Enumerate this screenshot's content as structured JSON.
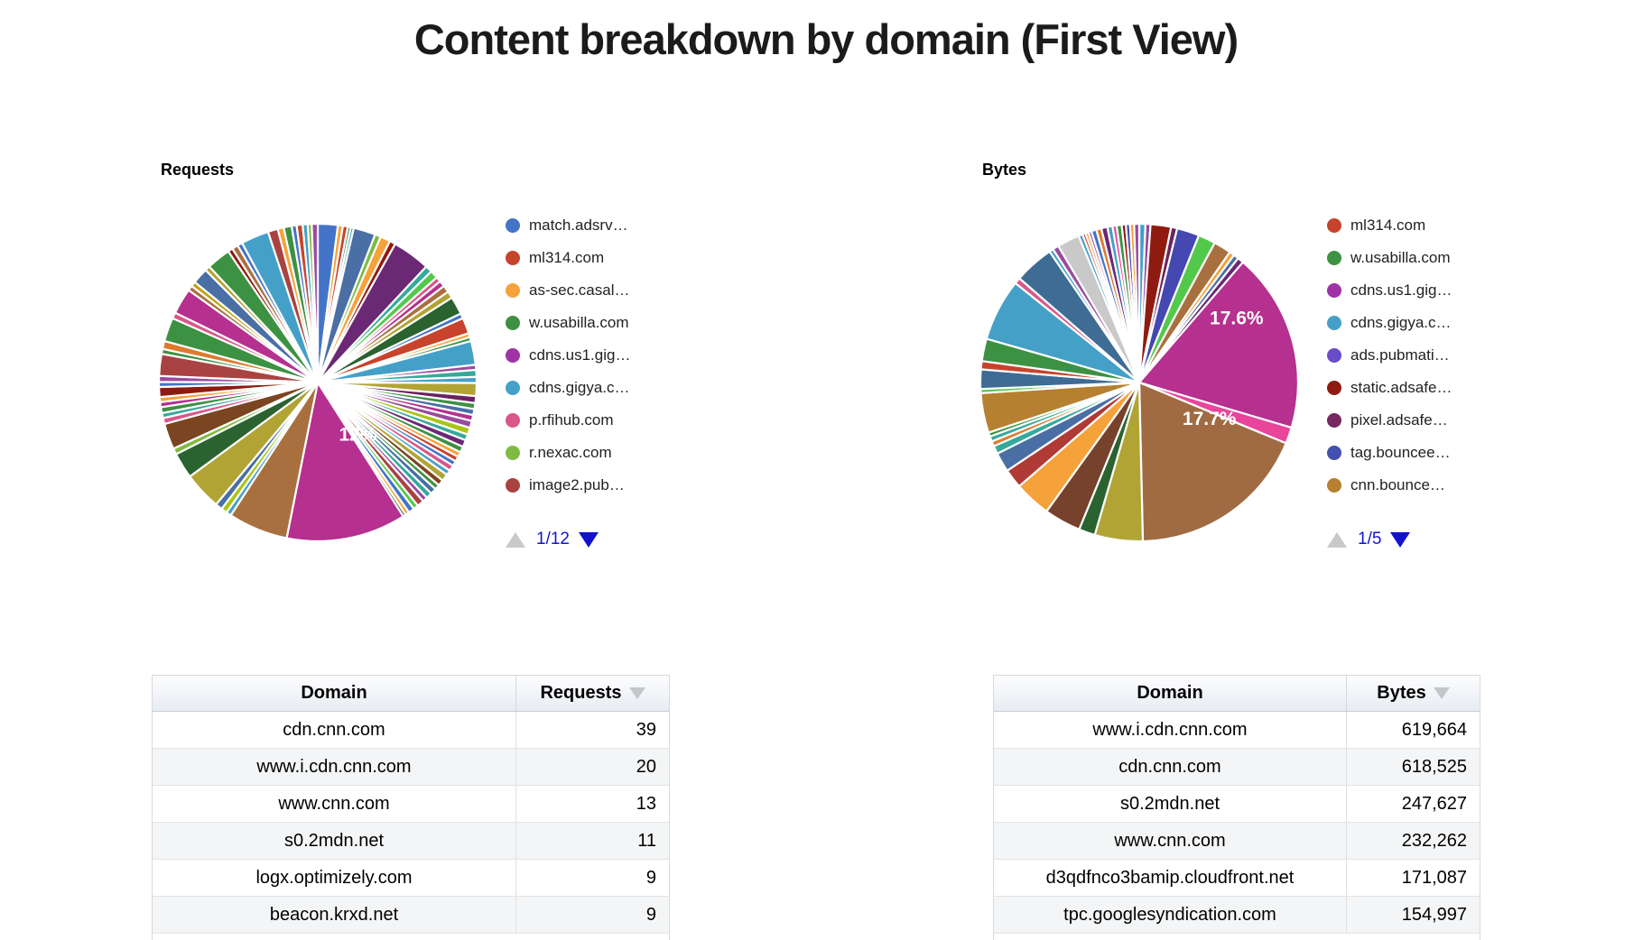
{
  "page_title": "Content breakdown by domain (First View)",
  "colors": {
    "pager_active": "#1212cc",
    "pager_disabled": "#c9c9c9",
    "percent_label": "#ffffff"
  },
  "chart_data": [
    {
      "type": "pie",
      "id": "requests",
      "title": "Requests",
      "labeled_slices": [
        {
          "label": "12%",
          "value_pct": 12
        }
      ],
      "legend": {
        "items": [
          {
            "label": "match.adsrv…",
            "color": "#4374C8"
          },
          {
            "label": "ml314.com",
            "color": "#C8432C"
          },
          {
            "label": "as-sec.casal…",
            "color": "#F5A23B"
          },
          {
            "label": "w.usabilla.com",
            "color": "#3D9142"
          },
          {
            "label": "cdns.us1.gig…",
            "color": "#A032A8"
          },
          {
            "label": "cdns.gigya.c…",
            "color": "#45A0C8"
          },
          {
            "label": "p.rfihub.com",
            "color": "#D9578A"
          },
          {
            "label": "r.nexac.com",
            "color": "#7FBB42"
          },
          {
            "label": "image2.pub…",
            "color": "#A94341"
          }
        ],
        "pager": {
          "label": "1/12",
          "up_enabled": false,
          "down_enabled": true
        }
      },
      "slices": [
        [
          2.0,
          "#4374C8"
        ],
        [
          0.5,
          "#F5A23B"
        ],
        [
          0.5,
          "#C8432C"
        ],
        [
          0.3,
          "#3D9142"
        ],
        [
          0.3,
          "#45A0C8"
        ],
        [
          2.2,
          "#4A6FA5"
        ],
        [
          0.6,
          "#7FBB42"
        ],
        [
          1.0,
          "#F5A23B"
        ],
        [
          0.6,
          "#8F1B10"
        ],
        [
          3.8,
          "#6B2875"
        ],
        [
          0.7,
          "#35A99A"
        ],
        [
          0.8,
          "#52C94B"
        ],
        [
          0.5,
          "#D9578A"
        ],
        [
          0.6,
          "#B5308F"
        ],
        [
          0.7,
          "#A9703F"
        ],
        [
          0.7,
          "#B1A435"
        ],
        [
          1.8,
          "#2A6330"
        ],
        [
          0.5,
          "#4374C8"
        ],
        [
          1.6,
          "#C8432C"
        ],
        [
          0.4,
          "#F5A23B"
        ],
        [
          0.4,
          "#3D9142"
        ],
        [
          2.4,
          "#45A0C8"
        ],
        [
          0.5,
          "#9A4B9E"
        ],
        [
          0.7,
          "#35A99A"
        ],
        [
          0.6,
          "#45A0C8"
        ],
        [
          1.3,
          "#B1A435"
        ],
        [
          0.7,
          "#6B2260"
        ],
        [
          0.6,
          "#3D9142"
        ],
        [
          0.6,
          "#4A6FA5"
        ],
        [
          0.6,
          "#B5308F"
        ],
        [
          0.7,
          "#9A4B9E"
        ],
        [
          0.7,
          "#A9C413"
        ],
        [
          0.6,
          "#35A99A"
        ],
        [
          0.7,
          "#6B2875"
        ],
        [
          0.6,
          "#3D9142"
        ],
        [
          0.5,
          "#F5A23B"
        ],
        [
          0.5,
          "#C8432C"
        ],
        [
          0.5,
          "#4374C8"
        ],
        [
          0.6,
          "#D9578A"
        ],
        [
          0.5,
          "#45A0C8"
        ],
        [
          0.7,
          "#B1A435"
        ],
        [
          0.6,
          "#7A4520"
        ],
        [
          0.5,
          "#3D9142"
        ],
        [
          0.6,
          "#4A6FA5"
        ],
        [
          0.6,
          "#35A99A"
        ],
        [
          0.5,
          "#9A4B9E"
        ],
        [
          0.7,
          "#A94341"
        ],
        [
          0.5,
          "#52C94B"
        ],
        [
          0.6,
          "#4374C8"
        ],
        [
          0.4,
          "#F5A23B"
        ],
        [
          0.3,
          "#2A6330"
        ],
        [
          12.0,
          "#B5308F",
          "12%",
          143,
          0.42
        ],
        [
          6.0,
          "#A9703F"
        ],
        [
          0.5,
          "#45A0C8"
        ],
        [
          0.6,
          "#A9C413"
        ],
        [
          0.7,
          "#4A6FA5"
        ],
        [
          3.8,
          "#B1A435"
        ],
        [
          2.6,
          "#2A6330"
        ],
        [
          0.6,
          "#7FBB42"
        ],
        [
          2.6,
          "#7A4520"
        ],
        [
          0.6,
          "#D9578A"
        ],
        [
          0.5,
          "#35A99A"
        ],
        [
          0.6,
          "#3D9142"
        ],
        [
          0.5,
          "#B5308F"
        ],
        [
          0.5,
          "#F5A23B"
        ],
        [
          1.0,
          "#8F1B10"
        ],
        [
          0.5,
          "#4374C8"
        ],
        [
          0.6,
          "#9A4B9E"
        ],
        [
          2.2,
          "#A94341"
        ],
        [
          0.5,
          "#3D9142"
        ],
        [
          0.8,
          "#DD7A2E"
        ],
        [
          2.4,
          "#3D9142"
        ],
        [
          0.6,
          "#D9578A"
        ],
        [
          2.6,
          "#B5308F"
        ],
        [
          0.5,
          "#A9703F"
        ],
        [
          0.5,
          "#BEA413"
        ],
        [
          1.6,
          "#4A6FA5"
        ],
        [
          0.5,
          "#B1A435"
        ],
        [
          2.4,
          "#3D9142"
        ],
        [
          0.5,
          "#8F1B10"
        ],
        [
          0.6,
          "#A9703F"
        ],
        [
          0.5,
          "#4374C8"
        ],
        [
          2.8,
          "#45A0C8"
        ],
        [
          1.0,
          "#A94341"
        ],
        [
          0.6,
          "#F5A23B"
        ],
        [
          0.8,
          "#3D9142"
        ],
        [
          0.5,
          "#4374C8"
        ],
        [
          0.6,
          "#C8432C"
        ],
        [
          0.5,
          "#45A0C8"
        ],
        [
          0.4,
          "#7FBB42"
        ],
        [
          0.6,
          "#9A4B9E"
        ]
      ]
    },
    {
      "type": "pie",
      "id": "bytes",
      "title": "Bytes",
      "labeled_slices": [
        {
          "label": "17.6%",
          "value_pct": 17.6
        },
        {
          "label": "17.7%",
          "value_pct": 17.7
        }
      ],
      "legend": {
        "items": [
          {
            "label": "ml314.com",
            "color": "#C8432C"
          },
          {
            "label": "w.usabilla.com",
            "color": "#3D9142"
          },
          {
            "label": "cdns.us1.gig…",
            "color": "#A032A8"
          },
          {
            "label": "cdns.gigya.c…",
            "color": "#45A0C8"
          },
          {
            "label": "ads.pubmati…",
            "color": "#6A4BC8"
          },
          {
            "label": "static.adsafe…",
            "color": "#8F1B10"
          },
          {
            "label": "pixel.adsafe…",
            "color": "#77285E"
          },
          {
            "label": "tag.bouncee…",
            "color": "#4350AF"
          },
          {
            "label": "cnn.bounce…",
            "color": "#B5802F"
          }
        ],
        "pager": {
          "label": "1/5",
          "up_enabled": false,
          "down_enabled": true
        }
      },
      "slices": [
        [
          0.6,
          "#45A0C8"
        ],
        [
          0.5,
          "#9A4B9E"
        ],
        [
          2.0,
          "#8F1B10"
        ],
        [
          0.6,
          "#6B2260"
        ],
        [
          2.2,
          "#4448B0"
        ],
        [
          1.7,
          "#52C94B"
        ],
        [
          1.7,
          "#A9703F"
        ],
        [
          0.5,
          "#F5A23B"
        ],
        [
          0.5,
          "#4A6FA5"
        ],
        [
          0.6,
          "#6B2875"
        ],
        [
          17.6,
          "#B5308F",
          "17.6%",
          57,
          0.73
        ],
        [
          1.6,
          "#E8459B"
        ],
        [
          17.7,
          "#A06B42",
          "17.7%",
          118,
          0.5
        ],
        [
          4.7,
          "#B1A435"
        ],
        [
          1.6,
          "#2A6330"
        ],
        [
          3.6,
          "#77422B"
        ],
        [
          3.6,
          "#F5A23B"
        ],
        [
          1.9,
          "#B03A35"
        ],
        [
          1.9,
          "#4A6FA5"
        ],
        [
          0.8,
          "#35A99A"
        ],
        [
          0.5,
          "#DD7A2E"
        ],
        [
          0.5,
          "#35A99A"
        ],
        [
          0.4,
          "#3D9142"
        ],
        [
          3.9,
          "#B5802F"
        ],
        [
          0.4,
          "#52C94B"
        ],
        [
          1.9,
          "#3E6C95"
        ],
        [
          0.8,
          "#C8432C"
        ],
        [
          2.2,
          "#3D9142"
        ],
        [
          6.1,
          "#45A0C8"
        ],
        [
          0.6,
          "#D9578A"
        ],
        [
          3.9,
          "#3E6C95"
        ],
        [
          0.4,
          "#45A0C8"
        ],
        [
          0.6,
          "#9A4B9E"
        ],
        [
          2.2,
          "#C9C9C9"
        ],
        [
          0.4,
          "#45A0C8"
        ],
        [
          0.3,
          "#C8432C"
        ],
        [
          0.3,
          "#F5A23B"
        ],
        [
          0.3,
          "#9A4B9E"
        ],
        [
          0.5,
          "#4374C8"
        ],
        [
          0.5,
          "#DD7A2E"
        ],
        [
          0.6,
          "#6B2875"
        ],
        [
          0.5,
          "#45A0C8"
        ],
        [
          0.4,
          "#E8459B"
        ],
        [
          0.5,
          "#3D9142"
        ],
        [
          0.4,
          "#8F1B10"
        ],
        [
          0.4,
          "#4448B0"
        ],
        [
          0.4,
          "#F5A23B"
        ],
        [
          0.5,
          "#9A4B9E"
        ]
      ]
    },
    {
      "type": "table",
      "id": "requests-table",
      "columns": [
        "Domain",
        "Requests"
      ],
      "sorted_by": "Requests",
      "sort_dir": "desc",
      "rows": [
        [
          "cdn.cnn.com",
          "39"
        ],
        [
          "www.i.cdn.cnn.com",
          "20"
        ],
        [
          "www.cnn.com",
          "13"
        ],
        [
          "s0.2mdn.net",
          "11"
        ],
        [
          "logx.optimizely.com",
          "9"
        ],
        [
          "beacon.krxd.net",
          "9"
        ]
      ]
    },
    {
      "type": "table",
      "id": "bytes-table",
      "columns": [
        "Domain",
        "Bytes"
      ],
      "sorted_by": "Bytes",
      "sort_dir": "desc",
      "rows": [
        [
          "www.i.cdn.cnn.com",
          "619,664"
        ],
        [
          "cdn.cnn.com",
          "618,525"
        ],
        [
          "s0.2mdn.net",
          "247,627"
        ],
        [
          "www.cnn.com",
          "232,262"
        ],
        [
          "d3qdfnco3bamip.cloudfront.net",
          "171,087"
        ],
        [
          "tpc.googlesyndication.com",
          "154,997"
        ]
      ]
    }
  ]
}
